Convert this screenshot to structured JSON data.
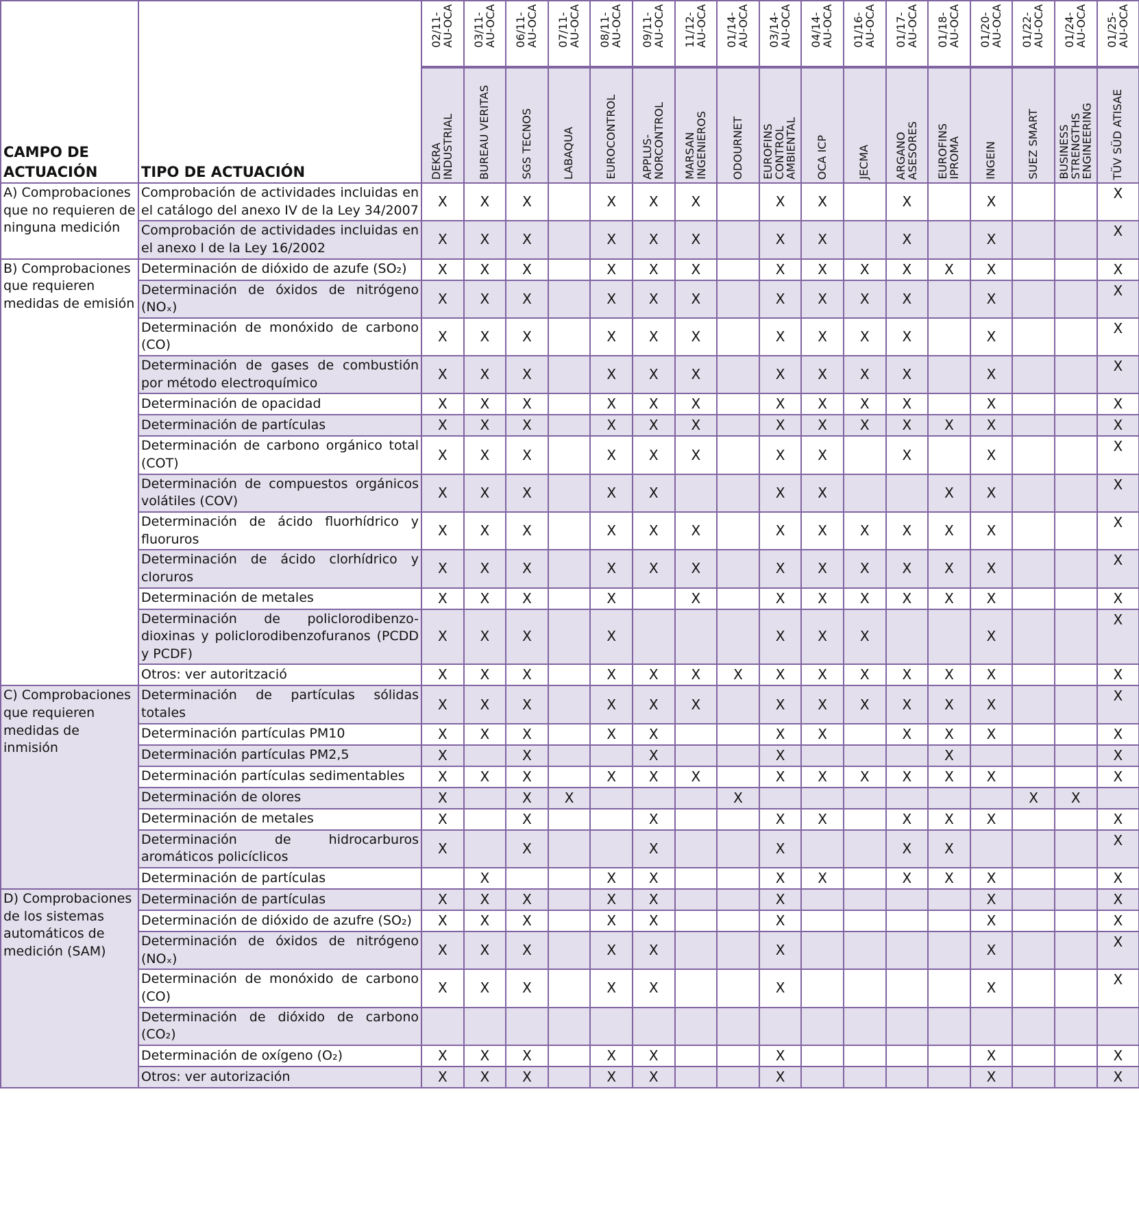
{
  "colors": {
    "border": "#8064a2",
    "shade": "#e4dfec"
  },
  "headers": {
    "campo": "CAMPO DE ACTUACIÓN",
    "tipo": "TIPO DE ACTUACIÓN"
  },
  "columns": [
    {
      "code": "02/11-\nAU-OCA",
      "name": "DEKRA\nINDUSTRIAL"
    },
    {
      "code": "03/11-\nAU-OCA",
      "name": "BUREAU VERITAS"
    },
    {
      "code": "06/11-\nAU-OCA",
      "name": "SGS TECNOS"
    },
    {
      "code": "07/11-\nAU-OCA",
      "name": "LABAQUA"
    },
    {
      "code": "08/11-\nAU-OCA",
      "name": "EUROCONTROL"
    },
    {
      "code": "09/11-\nAU-OCA",
      "name": "APPLUS-\nNORCONTROL"
    },
    {
      "code": "11/12-\nAU-OCA",
      "name": "MARSAN\nINGENIEROS"
    },
    {
      "code": "01/14-\nAU-OCA",
      "name": "ODOURNET"
    },
    {
      "code": "03/14-\nAU-OCA",
      "name": "EUROFINS\nCONTROL\nAMBIENTAL"
    },
    {
      "code": "04/14-\nAU-OCA",
      "name": "OCA ICP"
    },
    {
      "code": "01/16-\nAU-OCA",
      "name": "JECMA"
    },
    {
      "code": "01/17-\nAU-OCA",
      "name": "ARGANO\nASESORES"
    },
    {
      "code": "01/18-\nAU-OCA",
      "name": "EUROFINS\nIPROMA"
    },
    {
      "code": "01/20-\nAU-OCA",
      "name": "INGEIN"
    },
    {
      "code": "01/22-\nAU-OCA",
      "name": "SUEZ SMART"
    },
    {
      "code": "01/24-\nAU-OCA",
      "name": "BUSINESS\nSTRENGTHS\nENGINEERING"
    },
    {
      "code": "01/25-\nAU-OCA",
      "name": "TÜV SÜD ATISAE"
    }
  ],
  "sections": [
    {
      "campo": "A) Comprobaciones que no requieren de ninguna medición",
      "shaded": false,
      "rows": [
        {
          "tipo": "Comprobación de actividades incluidas en el catálogo del anexo IV de la Ley 34/2007",
          "marks": [
            "X",
            "X",
            "X",
            "",
            "X",
            "X",
            "X",
            "",
            "X",
            "X",
            "",
            "X",
            "",
            "X",
            "",
            "",
            "X"
          ]
        },
        {
          "tipo": "Comprobación de actividades incluidas en el anexo I de la Ley 16/2002",
          "marks": [
            "X",
            "X",
            "X",
            "",
            "X",
            "X",
            "X",
            "",
            "X",
            "X",
            "",
            "X",
            "",
            "X",
            "",
            "",
            "X"
          ]
        }
      ]
    },
    {
      "campo": "B) Comprobaciones que requieren medidas de emisión",
      "shaded": false,
      "rows": [
        {
          "tipo": "Determinación de dióxido de azufe (SO₂)",
          "marks": [
            "X",
            "X",
            "X",
            "",
            "X",
            "X",
            "X",
            "",
            "X",
            "X",
            "X",
            "X",
            "X",
            "X",
            "",
            "",
            "X"
          ]
        },
        {
          "tipo": "Determinación de óxidos de nitrógeno (NOₓ)",
          "marks": [
            "X",
            "X",
            "X",
            "",
            "X",
            "X",
            "X",
            "",
            "X",
            "X",
            "X",
            "X",
            "",
            "X",
            "",
            "",
            "X"
          ]
        },
        {
          "tipo": "Determinación de monóxido de carbono (CO)",
          "marks": [
            "X",
            "X",
            "X",
            "",
            "X",
            "X",
            "X",
            "",
            "X",
            "X",
            "X",
            "X",
            "",
            "X",
            "",
            "",
            "X"
          ]
        },
        {
          "tipo": "Determinación de gases de combustión por método electroquímico",
          "marks": [
            "X",
            "X",
            "X",
            "",
            "X",
            "X",
            "X",
            "",
            "X",
            "X",
            "X",
            "X",
            "",
            "X",
            "",
            "",
            "X"
          ]
        },
        {
          "tipo": "Determinación de opacidad",
          "marks": [
            "X",
            "X",
            "X",
            "",
            "X",
            "X",
            "X",
            "",
            "X",
            "X",
            "X",
            "X",
            "",
            "X",
            "",
            "",
            "X"
          ]
        },
        {
          "tipo": "Determinación de partículas",
          "marks": [
            "X",
            "X",
            "X",
            "",
            "X",
            "X",
            "X",
            "",
            "X",
            "X",
            "X",
            "X",
            "X",
            "X",
            "",
            "",
            "X"
          ]
        },
        {
          "tipo": "Determinación de carbono orgánico total (COT)",
          "marks": [
            "X",
            "X",
            "X",
            "",
            "X",
            "X",
            "X",
            "",
            "X",
            "X",
            "",
            "X",
            "",
            "X",
            "",
            "",
            "X"
          ]
        },
        {
          "tipo": "Determinación de compuestos orgánicos volátiles (COV)",
          "marks": [
            "X",
            "X",
            "X",
            "",
            "X",
            "X",
            "",
            "",
            "X",
            "X",
            "",
            "",
            "X",
            "X",
            "",
            "",
            "X"
          ]
        },
        {
          "tipo": "Determinación de ácido fluorhídrico y fluoruros",
          "marks": [
            "X",
            "X",
            "X",
            "",
            "X",
            "X",
            "X",
            "",
            "X",
            "X",
            "X",
            "X",
            "X",
            "X",
            "",
            "",
            "X"
          ]
        },
        {
          "tipo": "Determinación de ácido clorhídrico y cloruros",
          "marks": [
            "X",
            "X",
            "X",
            "",
            "X",
            "X",
            "X",
            "",
            "X",
            "X",
            "X",
            "X",
            "X",
            "X",
            "",
            "",
            "X"
          ]
        },
        {
          "tipo": "Determinación de metales",
          "marks": [
            "X",
            "X",
            "X",
            "",
            "X",
            "",
            "X",
            "",
            "X",
            "X",
            "X",
            "X",
            "X",
            "X",
            "",
            "",
            "X"
          ]
        },
        {
          "tipo": "Determinación de policlorodibenzo-dioxinas y policlorodibenzofuranos (PCDD y PCDF)",
          "marks": [
            "X",
            "X",
            "X",
            "",
            "X",
            "",
            "",
            "",
            "X",
            "X",
            "X",
            "",
            "",
            "X",
            "",
            "",
            "X"
          ]
        },
        {
          "tipo": "Otros: ver autorització",
          "marks": [
            "X",
            "X",
            "X",
            "",
            "X",
            "X",
            "X",
            "X",
            "X",
            "X",
            "X",
            "X",
            "X",
            "X",
            "",
            "",
            "X"
          ]
        }
      ]
    },
    {
      "campo": "C) Comprobaciones que requieren medidas de inmisión",
      "shaded": true,
      "rows": [
        {
          "tipo": "Determinación de partículas sólidas totales",
          "marks": [
            "X",
            "X",
            "X",
            "",
            "X",
            "X",
            "X",
            "",
            "X",
            "X",
            "X",
            "X",
            "X",
            "X",
            "",
            "",
            "X"
          ]
        },
        {
          "tipo": "Determinación partículas PM10",
          "marks": [
            "X",
            "X",
            "X",
            "",
            "X",
            "X",
            "",
            "",
            "X",
            "X",
            "",
            "X",
            "X",
            "X",
            "",
            "",
            "X"
          ]
        },
        {
          "tipo": "Determinación partículas PM2,5",
          "marks": [
            "X",
            "",
            "X",
            "",
            "",
            "X",
            "",
            "",
            "X",
            "",
            "",
            "",
            "X",
            "",
            "",
            "",
            "X"
          ]
        },
        {
          "tipo": "Determinación partículas sedimentables",
          "marks": [
            "X",
            "X",
            "X",
            "",
            "X",
            "X",
            "X",
            "",
            "X",
            "X",
            "X",
            "X",
            "X",
            "X",
            "",
            "",
            "X"
          ]
        },
        {
          "tipo": "Determinación de olores",
          "marks": [
            "X",
            "",
            "X",
            "X",
            "",
            "",
            "",
            "X",
            "",
            "",
            "",
            "",
            "",
            "",
            "X",
            "X",
            ""
          ]
        },
        {
          "tipo": "Determinación de metales",
          "marks": [
            "X",
            "",
            "X",
            "",
            "",
            "X",
            "",
            "",
            "X",
            "X",
            "",
            "X",
            "X",
            "X",
            "",
            "",
            "X"
          ]
        },
        {
          "tipo": "Determinación de hidrocarburos aromáticos policíclicos",
          "marks": [
            "X",
            "",
            "X",
            "",
            "",
            "X",
            "",
            "",
            "X",
            "",
            "",
            "X",
            "X",
            "",
            "",
            "",
            "X"
          ]
        },
        {
          "tipo": "Determinación de partículas",
          "marks": [
            "",
            "X",
            "",
            "",
            "X",
            "X",
            "",
            "",
            "X",
            "X",
            "",
            "X",
            "X",
            "X",
            "",
            "",
            "X"
          ]
        }
      ]
    },
    {
      "campo": "D) Comprobaciones de los sistemas automáticos de medición (SAM)",
      "shaded": true,
      "rows": [
        {
          "tipo": "Determinación de partículas",
          "marks": [
            "X",
            "X",
            "X",
            "",
            "X",
            "X",
            "",
            "",
            "X",
            "",
            "",
            "",
            "",
            "X",
            "",
            "",
            "X"
          ]
        },
        {
          "tipo": "Determinación de dióxido de azufre (SO₂)",
          "marks": [
            "X",
            "X",
            "X",
            "",
            "X",
            "X",
            "",
            "",
            "X",
            "",
            "",
            "",
            "",
            "X",
            "",
            "",
            "X"
          ]
        },
        {
          "tipo": "Determinación de óxidos de nitrógeno (NOₓ)",
          "marks": [
            "X",
            "X",
            "X",
            "",
            "X",
            "X",
            "",
            "",
            "X",
            "",
            "",
            "",
            "",
            "X",
            "",
            "",
            "X"
          ]
        },
        {
          "tipo": "Determinación de monóxido de carbono (CO)",
          "marks": [
            "X",
            "X",
            "X",
            "",
            "X",
            "X",
            "",
            "",
            "X",
            "",
            "",
            "",
            "",
            "X",
            "",
            "",
            "X"
          ]
        },
        {
          "tipo": "Determinación de dióxido de carbono (CO₂)",
          "marks": [
            "",
            "",
            "",
            "",
            "",
            "",
            "",
            "",
            "",
            "",
            "",
            "",
            "",
            "",
            "",
            "",
            ""
          ]
        },
        {
          "tipo": "Determinación de oxígeno (O₂)",
          "marks": [
            "X",
            "X",
            "X",
            "",
            "X",
            "X",
            "",
            "",
            "X",
            "",
            "",
            "",
            "",
            "X",
            "",
            "",
            "X"
          ]
        },
        {
          "tipo": "Otros: ver autorización",
          "marks": [
            "X",
            "X",
            "X",
            "",
            "X",
            "X",
            "",
            "",
            "X",
            "",
            "",
            "",
            "",
            "X",
            "",
            "",
            "X"
          ]
        }
      ]
    }
  ]
}
